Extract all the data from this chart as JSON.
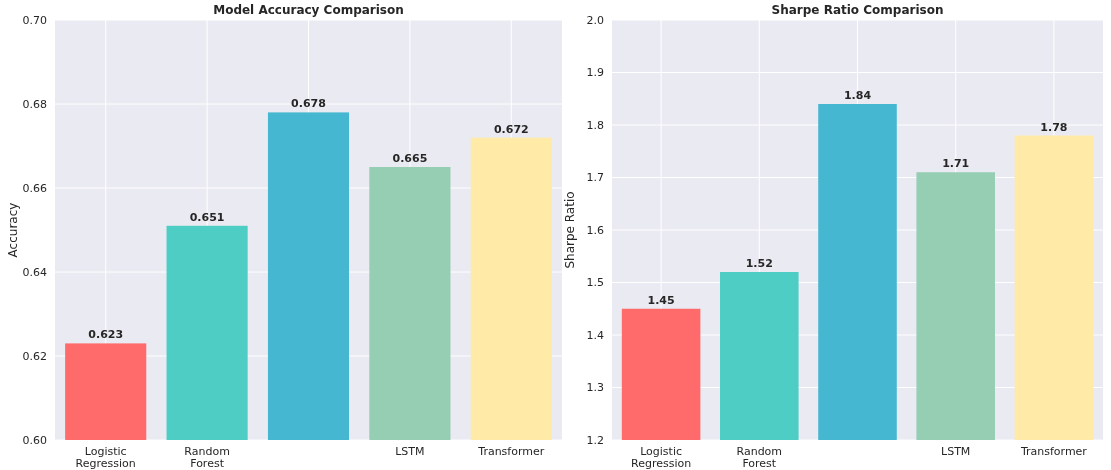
{
  "chart_data": [
    {
      "type": "bar",
      "title": "Model Accuracy Comparison",
      "ylabel": "Accuracy",
      "categories": [
        "Logistic Regression",
        "Random Forest",
        null,
        "LSTM",
        "Transformer"
      ],
      "values": [
        0.623,
        0.651,
        0.678,
        0.665,
        0.672
      ],
      "colors": [
        "#ff6b6b",
        "#4ecdc4",
        "#45b7d1",
        "#96ceb4",
        "#ffeaa7"
      ],
      "ylim": [
        0.6,
        0.7
      ],
      "yticks": [
        {
          "value": 0.6,
          "label": "0.60"
        },
        0.62,
        0.64,
        0.66,
        0.68,
        {
          "value": 0.7,
          "label": "0.70"
        }
      ],
      "grid": true,
      "data_labels": true
    },
    {
      "type": "bar",
      "title": "Sharpe Ratio Comparison",
      "ylabel": "Sharpe Ratio",
      "categories": [
        "Logistic Regression",
        "Random Forest",
        null,
        "LSTM",
        "Transformer"
      ],
      "values": [
        1.45,
        1.52,
        1.84,
        1.71,
        1.78
      ],
      "colors": [
        "#ff6b6b",
        "#4ecdc4",
        "#45b7d1",
        "#96ceb4",
        "#ffeaa7"
      ],
      "ylim": [
        1.2,
        2.0
      ],
      "yticks": [
        1.2,
        1.3,
        1.4,
        1.5,
        1.6,
        1.7,
        1.8,
        1.9,
        {
          "value": 2,
          "label": "2.0"
        }
      ],
      "grid": true,
      "data_labels": true
    }
  ]
}
